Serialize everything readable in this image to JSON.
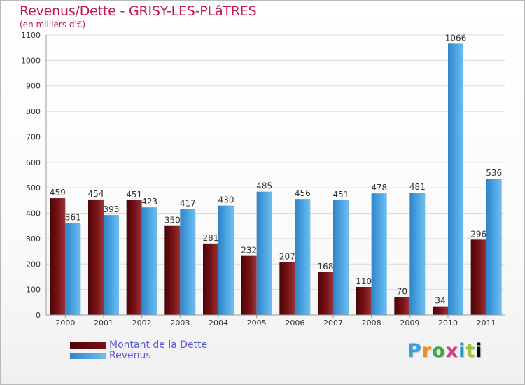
{
  "chart_data": {
    "type": "bar",
    "title": "Revenus/Dette - GRISY-LES-PLâTRES",
    "subtitle": "(en milliers d'€)",
    "categories": [
      "2000",
      "2001",
      "2002",
      "2003",
      "2004",
      "2005",
      "2006",
      "2007",
      "2008",
      "2009",
      "2010",
      "2011"
    ],
    "series": [
      {
        "name": "Montant de la Dette",
        "color": "#7a1216",
        "values": [
          459,
          454,
          451,
          350,
          281,
          232,
          207,
          168,
          110,
          70,
          34,
          296
        ]
      },
      {
        "name": "Revenus",
        "color": "#4da3e0",
        "values": [
          361,
          393,
          423,
          417,
          430,
          485,
          456,
          451,
          478,
          481,
          1066,
          536
        ]
      }
    ],
    "ylim": [
      0,
      1100
    ],
    "yticks": [
      0,
      100,
      200,
      300,
      400,
      500,
      600,
      700,
      800,
      900,
      1000,
      1100
    ],
    "grid": true,
    "legend_position": "bottom-left"
  },
  "legend": {
    "items": [
      {
        "label": "Montant de la Dette",
        "color": "#7a1216"
      },
      {
        "label": "Revenus",
        "color": "#4da3e0"
      }
    ]
  },
  "logo": {
    "letters": [
      "P",
      "r",
      "o",
      "x",
      "i",
      "t",
      "i"
    ]
  }
}
